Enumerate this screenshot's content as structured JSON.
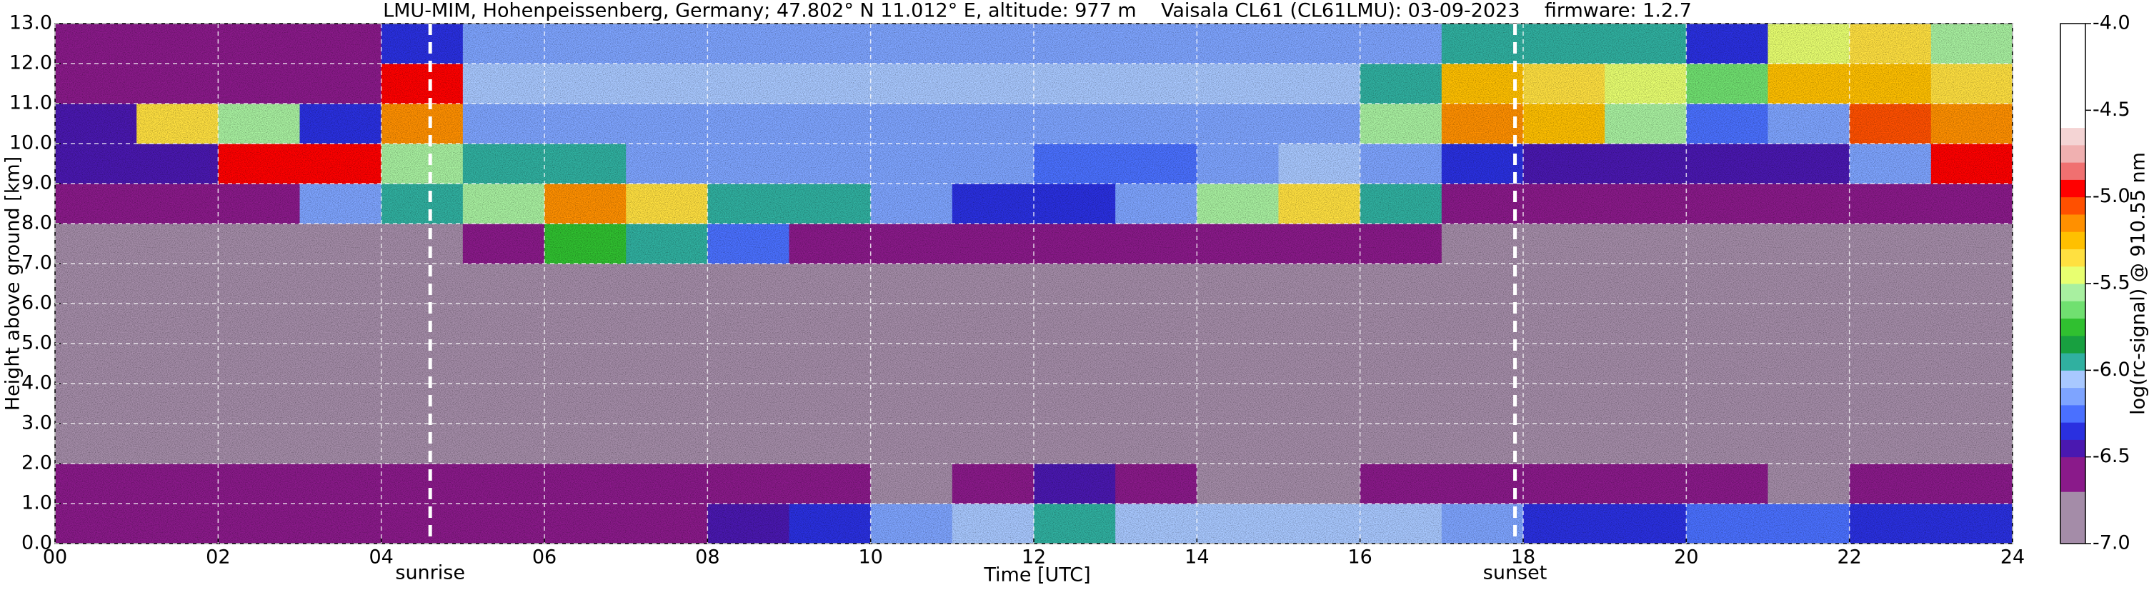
{
  "chart_data": {
    "type": "heatmap",
    "title": "LMU-MIM, Hohenpeissenberg, Germany; 47.802° N 11.012° E, altitude: 977 m    Vaisala CL61 (CL61LMU): 03-09-2023    firmware: 1.2.7",
    "x_label": "Time [UTC]",
    "y_label": "Height above ground [km]",
    "x": [
      0,
      1,
      2,
      3,
      4,
      5,
      6,
      7,
      8,
      9,
      10,
      11,
      12,
      13,
      14,
      15,
      16,
      17,
      18,
      19,
      20,
      21,
      22,
      23
    ],
    "y": [
      0,
      1,
      2,
      3,
      4,
      5,
      6,
      7,
      8,
      9,
      10,
      11,
      12
    ],
    "z": [
      [
        -6.6,
        -6.6,
        -6.6,
        -6.6,
        -6.6,
        -6.6,
        -6.6,
        -6.6,
        -6.5,
        -6.4,
        -6.2,
        -6.1,
        -6.0,
        -6.1,
        -6.1,
        -6.1,
        -6.1,
        -6.2,
        -6.4,
        -6.4,
        -6.3,
        -6.3,
        -6.4,
        -6.4
      ],
      [
        -6.7,
        -6.7,
        -6.7,
        -6.7,
        -6.7,
        -6.7,
        -6.7,
        -6.7,
        -6.7,
        -6.7,
        -6.8,
        -6.6,
        -6.5,
        -6.6,
        -6.8,
        -6.8,
        -6.7,
        -6.6,
        -6.6,
        -6.6,
        -6.7,
        -6.8,
        -6.6,
        -6.6
      ],
      [
        -6.8,
        -6.8,
        -6.8,
        -6.8,
        -6.8,
        -6.8,
        -6.8,
        -6.8,
        -6.8,
        -6.8,
        -6.8,
        -6.8,
        -6.8,
        -6.8,
        -6.8,
        -6.8,
        -6.8,
        -6.8,
        -6.8,
        -6.8,
        -6.8,
        -6.8,
        -6.8,
        -6.8
      ],
      [
        -6.8,
        -6.8,
        -6.8,
        -6.8,
        -6.8,
        -6.8,
        -6.8,
        -6.8,
        -6.8,
        -6.8,
        -6.8,
        -6.8,
        -6.8,
        -6.8,
        -6.8,
        -6.8,
        -6.8,
        -6.8,
        -6.8,
        -6.8,
        -6.8,
        -6.8,
        -6.8,
        -6.8
      ],
      [
        -6.8,
        -6.8,
        -6.8,
        -6.8,
        -6.8,
        -6.8,
        -6.8,
        -6.8,
        -6.8,
        -6.8,
        -6.8,
        -6.8,
        -6.8,
        -6.8,
        -6.8,
        -6.8,
        -6.8,
        -6.8,
        -6.8,
        -6.8,
        -6.8,
        -6.8,
        -6.8,
        -6.8
      ],
      [
        -6.8,
        -6.8,
        -6.8,
        -6.8,
        -6.8,
        -6.8,
        -6.8,
        -6.8,
        -6.8,
        -6.8,
        -6.8,
        -6.8,
        -6.8,
        -6.8,
        -6.8,
        -6.8,
        -6.8,
        -6.8,
        -6.8,
        -6.8,
        -6.8,
        -6.8,
        -6.8,
        -6.8
      ],
      [
        -6.8,
        -6.8,
        -6.8,
        -6.8,
        -6.8,
        -6.8,
        -6.8,
        -6.8,
        -6.8,
        -6.8,
        -6.8,
        -6.8,
        -6.8,
        -6.8,
        -6.8,
        -6.8,
        -6.8,
        -6.8,
        -6.8,
        -6.8,
        -6.8,
        -6.8,
        -6.8,
        -6.8
      ],
      [
        -6.8,
        -6.8,
        -6.8,
        -6.8,
        -6.8,
        -6.6,
        -5.8,
        -6.0,
        -6.3,
        -6.6,
        -6.6,
        -6.6,
        -6.6,
        -6.6,
        -6.6,
        -6.6,
        -6.7,
        -6.8,
        -6.8,
        -6.8,
        -6.8,
        -6.8,
        -6.8,
        -6.8
      ],
      [
        -6.6,
        -6.6,
        -6.6,
        -6.2,
        -6.0,
        -5.6,
        -5.2,
        -5.4,
        -6.0,
        -6.0,
        -6.2,
        -6.4,
        -6.4,
        -6.2,
        -5.6,
        -5.4,
        -6.0,
        -6.6,
        -6.6,
        -6.6,
        -6.6,
        -6.6,
        -6.6,
        -6.6
      ],
      [
        -6.5,
        -6.5,
        -5.0,
        -5.0,
        -5.6,
        -6.0,
        -6.0,
        -6.2,
        -6.2,
        -6.2,
        -6.2,
        -6.2,
        -6.3,
        -6.3,
        -6.2,
        -6.1,
        -6.2,
        -6.4,
        -6.5,
        -6.5,
        -6.5,
        -6.5,
        -6.2,
        -5.0
      ],
      [
        -6.5,
        -5.4,
        -5.6,
        -6.4,
        -5.2,
        -6.2,
        -6.2,
        -6.2,
        -6.2,
        -6.2,
        -6.2,
        -6.2,
        -6.2,
        -6.2,
        -6.2,
        -6.2,
        -5.6,
        -5.2,
        -5.3,
        -5.6,
        -6.3,
        -6.2,
        -5.1,
        -5.2
      ],
      [
        -6.6,
        -6.6,
        -6.6,
        -6.6,
        -5.0,
        -6.1,
        -6.1,
        -6.1,
        -6.1,
        -6.1,
        -6.1,
        -6.1,
        -6.1,
        -6.1,
        -6.1,
        -6.1,
        -6.0,
        -5.3,
        -5.4,
        -5.5,
        -5.7,
        -5.3,
        -5.3,
        -5.4
      ],
      [
        -6.6,
        -6.6,
        -6.6,
        -6.6,
        -6.4,
        -6.2,
        -6.2,
        -6.2,
        -6.2,
        -6.2,
        -6.2,
        -6.2,
        -6.2,
        -6.2,
        -6.2,
        -6.2,
        -6.2,
        -6.0,
        -6.0,
        -6.0,
        -6.4,
        -5.5,
        -5.4,
        -5.6
      ]
    ],
    "xlim": [
      0,
      24
    ],
    "ylim": [
      0,
      13
    ],
    "xticks": [
      {
        "value": 0,
        "label": "00"
      },
      {
        "value": 2,
        "label": "02"
      },
      {
        "value": 4,
        "label": "04"
      },
      {
        "value": 6,
        "label": "06"
      },
      {
        "value": 8,
        "label": "08"
      },
      10,
      12,
      14,
      16,
      18,
      20,
      22,
      24
    ],
    "yticks": [
      {
        "value": 0,
        "label": "0.0"
      },
      {
        "value": 1,
        "label": "1.0"
      },
      {
        "value": 2,
        "label": "2.0"
      },
      {
        "value": 3,
        "label": "3.0"
      },
      {
        "value": 4,
        "label": "4.0"
      },
      {
        "value": 5,
        "label": "5.0"
      },
      {
        "value": 6,
        "label": "6.0"
      },
      {
        "value": 7,
        "label": "7.0"
      },
      {
        "value": 8,
        "label": "8.0"
      },
      {
        "value": 9,
        "label": "9.0"
      },
      {
        "value": 10,
        "label": "10.0"
      },
      {
        "value": 11,
        "label": "11.0"
      },
      {
        "value": 12,
        "label": "12.0"
      },
      {
        "value": 13,
        "label": "13.0"
      }
    ],
    "grid": true,
    "annotations": [
      {
        "text": "sunrise",
        "x": 4.6
      },
      {
        "text": "sunset",
        "x": 17.9
      }
    ],
    "colorbar": {
      "label": "log(rc-signal) @ 910.55 nm",
      "levels": [
        -7.0,
        -6.7,
        -6.5,
        -6.4,
        -6.3,
        -6.2,
        -6.1,
        -6.0,
        -5.9,
        -5.8,
        -5.7,
        -5.6,
        -5.5,
        -5.4,
        -5.3,
        -5.2,
        -5.1,
        -5.0,
        -4.9,
        -4.8,
        -4.7,
        -4.6,
        -4.0
      ],
      "colors": [
        "#a48ca8",
        "#8a1a8a",
        "#4a18b0",
        "#2a30e0",
        "#4a70ff",
        "#7ea4ff",
        "#a8c8ff",
        "#30b0a0",
        "#18a040",
        "#30c030",
        "#70e070",
        "#a8f0a0",
        "#e8ff70",
        "#ffe040",
        "#ffc000",
        "#ff9000",
        "#ff5000",
        "#ff0000",
        "#f07070",
        "#f0b0b0",
        "#f4d4d4",
        "#ffffff"
      ],
      "ticks": [
        {
          "value": -7,
          "label": "-7.0"
        },
        {
          "value": -6.5,
          "label": "-6.5"
        },
        {
          "value": -6,
          "label": "-6.0"
        },
        {
          "value": -5.5,
          "label": "-5.5"
        },
        {
          "value": -5,
          "label": "-5.0"
        },
        {
          "value": -4.5,
          "label": "-4.5"
        },
        {
          "value": -4,
          "label": "-4.0"
        }
      ]
    }
  }
}
